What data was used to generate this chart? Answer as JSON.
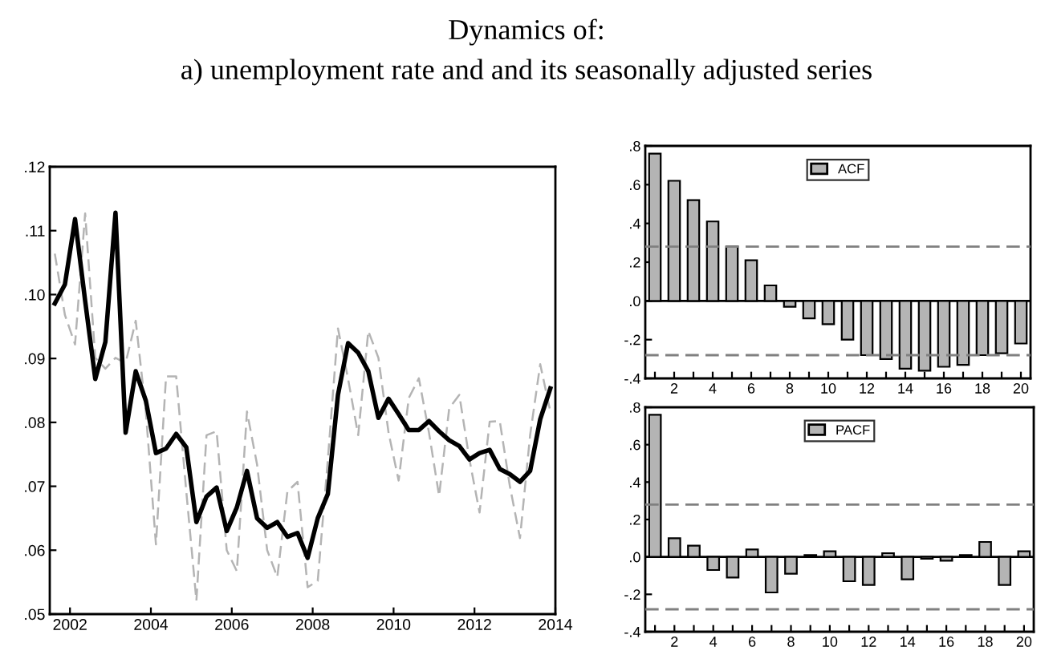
{
  "chart_data": [
    {
      "type": "line",
      "title": "Dynamics of:",
      "subtitle": "a) unemployment rate and and its seasonally adjusted series",
      "x": [
        2001.625,
        2001.875,
        2002.125,
        2002.375,
        2002.625,
        2002.875,
        2003.125,
        2003.375,
        2003.625,
        2003.875,
        2004.125,
        2004.375,
        2004.625,
        2004.875,
        2005.125,
        2005.375,
        2005.625,
        2005.875,
        2006.125,
        2006.375,
        2006.625,
        2006.875,
        2007.125,
        2007.375,
        2007.625,
        2007.875,
        2008.125,
        2008.375,
        2008.625,
        2008.875,
        2009.125,
        2009.375,
        2009.625,
        2009.875,
        2010.125,
        2010.375,
        2010.625,
        2010.875,
        2011.125,
        2011.375,
        2011.625,
        2011.875,
        2012.125,
        2012.375,
        2012.625,
        2012.875,
        2013.125,
        2013.375,
        2013.625,
        2013.875
      ],
      "series": [
        {
          "color": "#b4b4b4",
          "line_style": "dashed",
          "values": [
            0.1064,
            0.0968,
            0.0922,
            0.1127,
            0.0901,
            0.0884,
            0.0901,
            0.0893,
            0.0959,
            0.0817,
            0.0609,
            0.0872,
            0.0872,
            0.0692,
            0.0521,
            0.078,
            0.0786,
            0.06,
            0.0567,
            0.0817,
            0.0734,
            0.06,
            0.0558,
            0.0692,
            0.0707,
            0.0542,
            0.0552,
            0.0742,
            0.0947,
            0.0868,
            0.078,
            0.0943,
            0.0901,
            0.0784,
            0.0709,
            0.0838,
            0.0869,
            0.0784,
            0.0685,
            0.0822,
            0.0843,
            0.0742,
            0.0659,
            0.0801,
            0.0802,
            0.07,
            0.0619,
            0.078,
            0.0891,
            0.0817
          ]
        },
        {
          "color": "#000000",
          "line_style": "solid",
          "values": [
            0.0986,
            0.1016,
            0.1118,
            0.099,
            0.0868,
            0.0926,
            0.1128,
            0.0784,
            0.088,
            0.0834,
            0.0752,
            0.0759,
            0.0782,
            0.0761,
            0.0644,
            0.0684,
            0.0698,
            0.063,
            0.0667,
            0.0724,
            0.065,
            0.0635,
            0.0644,
            0.0621,
            0.0627,
            0.0588,
            0.065,
            0.0688,
            0.0843,
            0.0924,
            0.0909,
            0.088,
            0.0807,
            0.0837,
            0.0813,
            0.0788,
            0.0788,
            0.0802,
            0.0786,
            0.0772,
            0.0763,
            0.0742,
            0.0752,
            0.0757,
            0.0727,
            0.0719,
            0.0707,
            0.0724,
            0.0805,
            0.0853
          ]
        }
      ],
      "xlim": [
        2001.5,
        2014
      ],
      "xticks": [
        {
          "value": 2002,
          "label": "2002"
        },
        {
          "value": 2004,
          "label": "2004"
        },
        {
          "value": 2006,
          "label": "2006"
        },
        {
          "value": 2008,
          "label": "2008"
        },
        {
          "value": 2010,
          "label": "2010"
        },
        {
          "value": 2012,
          "label": "2012"
        },
        {
          "value": 2014,
          "label": "2014"
        }
      ],
      "ylim": [
        0.05,
        0.12
      ],
      "yticks": [
        {
          "value": 0.05,
          "label": ".05"
        },
        {
          "value": 0.06,
          "label": ".06"
        },
        {
          "value": 0.07,
          "label": ".07"
        },
        {
          "value": 0.08,
          "label": ".08"
        },
        {
          "value": 0.09,
          "label": ".09"
        },
        {
          "value": 0.1,
          "label": ".10"
        },
        {
          "value": 0.11,
          "label": ".11"
        },
        {
          "value": 0.12,
          "label": ".12"
        }
      ],
      "grid": false,
      "legend": false
    },
    {
      "type": "bar",
      "x": [
        1,
        2,
        3,
        4,
        5,
        6,
        7,
        8,
        9,
        10,
        11,
        12,
        13,
        14,
        15,
        16,
        17,
        18,
        19,
        20
      ],
      "series": [
        {
          "name": "ACF",
          "color": "#b4b4b4",
          "values": [
            0.76,
            0.62,
            0.52,
            0.41,
            0.28,
            0.21,
            0.08,
            -0.03,
            -0.09,
            -0.12,
            -0.2,
            -0.28,
            -0.3,
            -0.35,
            -0.36,
            -0.34,
            -0.33,
            -0.28,
            -0.27,
            -0.22
          ]
        }
      ],
      "xlim": [
        0.5,
        20.5
      ],
      "xticks": [
        {
          "value": 1,
          "label": null
        },
        2,
        {
          "value": 3,
          "label": null
        },
        4,
        {
          "value": 5,
          "label": null
        },
        6,
        {
          "value": 7,
          "label": null
        },
        8,
        {
          "value": 9,
          "label": null
        },
        10,
        {
          "value": 11,
          "label": null
        },
        12,
        {
          "value": 13,
          "label": null
        },
        14,
        {
          "value": 15,
          "label": null
        },
        16,
        {
          "value": 17,
          "label": null
        },
        18,
        {
          "value": 19,
          "label": null
        },
        20
      ],
      "ylim": [
        -0.4,
        0.8
      ],
      "yticks": [
        {
          "value": -0.4,
          "label": "-.4"
        },
        {
          "value": -0.2,
          "label": "-.2"
        },
        {
          "value": 0,
          "label": ".0"
        },
        {
          "value": 0.2,
          "label": ".2"
        },
        {
          "value": 0.4,
          "label": ".4"
        },
        {
          "value": 0.6,
          "label": ".6"
        },
        {
          "value": 0.8,
          "label": ".8"
        }
      ],
      "ref_lines": [
        {
          "axis": "y",
          "value": 0.28,
          "color": "#808080",
          "line_style": "dashed"
        },
        {
          "axis": "y",
          "value": -0.28,
          "color": "#808080",
          "line_style": "dashed"
        },
        {
          "axis": "y",
          "value": 0,
          "color": "#000000",
          "line_style": "solid"
        }
      ],
      "grid": false,
      "legend": "top"
    },
    {
      "type": "bar",
      "x": [
        1,
        2,
        3,
        4,
        5,
        6,
        7,
        8,
        9,
        10,
        11,
        12,
        13,
        14,
        15,
        16,
        17,
        18,
        19,
        20
      ],
      "series": [
        {
          "name": "PACF",
          "color": "#b4b4b4",
          "values": [
            0.76,
            0.1,
            0.06,
            -0.07,
            -0.11,
            0.04,
            -0.19,
            -0.09,
            0.01,
            0.03,
            -0.13,
            -0.15,
            0.02,
            -0.12,
            -0.01,
            -0.02,
            0.01,
            0.08,
            -0.15,
            0.03
          ]
        }
      ],
      "xlim": [
        0.5,
        20.5
      ],
      "xticks": [
        {
          "value": 1,
          "label": null
        },
        2,
        {
          "value": 3,
          "label": null
        },
        4,
        {
          "value": 5,
          "label": null
        },
        6,
        {
          "value": 7,
          "label": null
        },
        8,
        {
          "value": 9,
          "label": null
        },
        10,
        {
          "value": 11,
          "label": null
        },
        12,
        {
          "value": 13,
          "label": null
        },
        14,
        {
          "value": 15,
          "label": null
        },
        16,
        {
          "value": 17,
          "label": null
        },
        18,
        {
          "value": 19,
          "label": null
        },
        20
      ],
      "ylim": [
        -0.4,
        0.8
      ],
      "yticks": [
        {
          "value": -0.4,
          "label": "-.4"
        },
        {
          "value": -0.2,
          "label": "-.2"
        },
        {
          "value": 0,
          "label": ".0"
        },
        {
          "value": 0.2,
          "label": ".2"
        },
        {
          "value": 0.4,
          "label": ".4"
        },
        {
          "value": 0.6,
          "label": ".6"
        },
        {
          "value": 0.8,
          "label": ".8"
        }
      ],
      "ref_lines": [
        {
          "axis": "y",
          "value": 0.28,
          "color": "#808080",
          "line_style": "dashed"
        },
        {
          "axis": "y",
          "value": -0.28,
          "color": "#808080",
          "line_style": "dashed"
        },
        {
          "axis": "y",
          "value": 0,
          "color": "#000000",
          "line_style": "solid"
        }
      ],
      "grid": false,
      "legend": "top"
    }
  ]
}
